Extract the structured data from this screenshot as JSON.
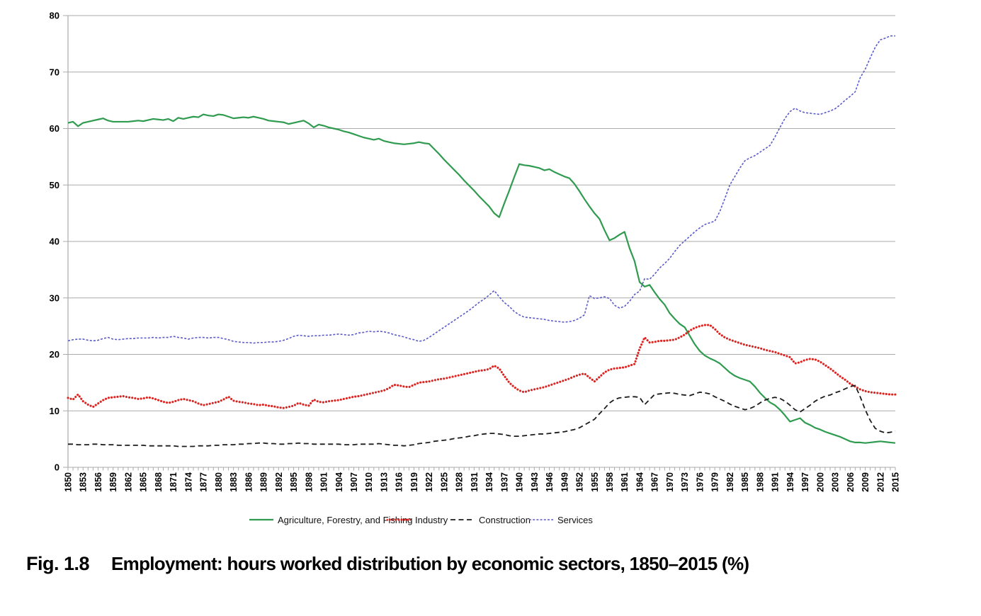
{
  "figure": {
    "fig_label": "Fig. 1.8",
    "caption": "Employment: hours worked distribution by economic sectors, 1850–2015 (%)"
  },
  "chart_data": {
    "type": "line",
    "title": "",
    "xlabel": "",
    "ylabel": "",
    "x_range": [
      1850,
      2015
    ],
    "x_step": 1,
    "ylim": [
      0,
      80
    ],
    "y_ticks": [
      0,
      10,
      20,
      30,
      40,
      50,
      60,
      70,
      80
    ],
    "grid": "horizontal",
    "legend_position": "bottom",
    "axis_color": "#ababab",
    "x_tick_labels": [
      "1850",
      "1853",
      "1856",
      "1859",
      "1862",
      "1865",
      "1868",
      "1871",
      "1874",
      "1877",
      "1880",
      "1883",
      "1886",
      "1889",
      "1892",
      "1895",
      "1898",
      "1901",
      "1904",
      "1907",
      "1910",
      "1913",
      "1916",
      "1919",
      "1922",
      "1925",
      "1928",
      "1931",
      "1934",
      "1937",
      "1940",
      "1943",
      "1946",
      "1949",
      "1952",
      "1955",
      "1958",
      "1961",
      "1964",
      "1967",
      "1970",
      "1973",
      "1976",
      "1979",
      "1982",
      "1985",
      "1988",
      "1991",
      "1994",
      "1997",
      "2000",
      "2003",
      "2006",
      "2009",
      "2012",
      "2015"
    ],
    "series": [
      {
        "name": "Agriculture, Forestry, and Fishing",
        "color": "#2f9b4f",
        "style": "solid",
        "values": [
          61.0,
          61.2,
          60.4,
          61.0,
          61.2,
          61.4,
          61.6,
          61.8,
          61.4,
          61.2,
          61.2,
          61.2,
          61.2,
          61.3,
          61.4,
          61.3,
          61.5,
          61.7,
          61.6,
          61.5,
          61.7,
          61.3,
          61.9,
          61.7,
          61.9,
          62.1,
          62.0,
          62.5,
          62.3,
          62.2,
          62.5,
          62.4,
          62.1,
          61.8,
          61.9,
          62.0,
          61.9,
          62.1,
          61.9,
          61.7,
          61.4,
          61.3,
          61.2,
          61.1,
          60.8,
          61.0,
          61.2,
          61.4,
          60.9,
          60.2,
          60.7,
          60.5,
          60.2,
          60.0,
          59.8,
          59.5,
          59.3,
          59.0,
          58.7,
          58.4,
          58.2,
          58.0,
          58.2,
          57.8,
          57.6,
          57.4,
          57.3,
          57.2,
          57.3,
          57.4,
          57.6,
          57.4,
          57.3,
          56.4,
          55.5,
          54.5,
          53.6,
          52.7,
          51.8,
          50.8,
          49.9,
          49.0,
          48.0,
          47.1,
          46.2,
          45.0,
          44.3,
          46.7,
          49.0,
          51.4,
          53.7,
          53.5,
          53.4,
          53.2,
          53.0,
          52.6,
          52.8,
          52.3,
          51.9,
          51.5,
          51.2,
          50.2,
          48.9,
          47.5,
          46.2,
          45.0,
          44.0,
          42.0,
          40.2,
          40.6,
          41.2,
          41.7,
          38.8,
          36.5,
          32.8,
          32.0,
          32.3,
          31.0,
          29.8,
          28.8,
          27.3,
          26.3,
          25.4,
          24.8,
          23.3,
          21.8,
          20.6,
          19.8,
          19.3,
          18.9,
          18.4,
          17.6,
          16.8,
          16.2,
          15.8,
          15.5,
          15.2,
          14.3,
          13.2,
          12.3,
          11.5,
          11.0,
          10.2,
          9.2,
          8.1,
          8.4,
          8.7,
          7.9,
          7.5,
          7.0,
          6.7,
          6.3,
          6.0,
          5.7,
          5.4,
          5.0,
          4.6,
          4.4,
          4.4,
          4.3,
          4.4,
          4.5,
          4.6,
          4.5,
          4.4,
          4.3
        ]
      },
      {
        "name": "Industry",
        "color": "#dd2421",
        "style": "dotted",
        "values": [
          12.3,
          12.0,
          12.9,
          11.7,
          11.1,
          10.7,
          11.3,
          11.9,
          12.3,
          12.4,
          12.5,
          12.6,
          12.4,
          12.3,
          12.1,
          12.2,
          12.4,
          12.2,
          11.9,
          11.6,
          11.4,
          11.6,
          11.9,
          12.1,
          11.9,
          11.7,
          11.3,
          11.0,
          11.2,
          11.4,
          11.6,
          12.0,
          12.5,
          11.8,
          11.6,
          11.5,
          11.3,
          11.2,
          11.0,
          11.1,
          10.9,
          10.8,
          10.6,
          10.5,
          10.7,
          10.9,
          11.4,
          11.1,
          10.9,
          12.0,
          11.6,
          11.5,
          11.7,
          11.8,
          11.9,
          12.1,
          12.3,
          12.5,
          12.6,
          12.8,
          13.0,
          13.2,
          13.4,
          13.6,
          14.0,
          14.6,
          14.5,
          14.3,
          14.2,
          14.6,
          15.0,
          15.1,
          15.2,
          15.4,
          15.6,
          15.7,
          15.9,
          16.1,
          16.3,
          16.5,
          16.7,
          16.9,
          17.1,
          17.2,
          17.4,
          18.0,
          17.5,
          16.2,
          15.0,
          14.2,
          13.6,
          13.3,
          13.6,
          13.8,
          14.0,
          14.2,
          14.5,
          14.8,
          15.1,
          15.4,
          15.7,
          16.1,
          16.4,
          16.6,
          15.9,
          15.2,
          16.0,
          16.8,
          17.3,
          17.5,
          17.6,
          17.7,
          18.0,
          18.3,
          21.0,
          23.0,
          22.1,
          22.2,
          22.4,
          22.4,
          22.5,
          22.6,
          23.0,
          23.5,
          24.2,
          24.7,
          25.0,
          25.2,
          25.2,
          24.5,
          23.6,
          23.0,
          22.6,
          22.3,
          22.0,
          21.7,
          21.5,
          21.3,
          21.1,
          20.8,
          20.6,
          20.4,
          20.1,
          19.8,
          19.5,
          18.4,
          18.6,
          19.0,
          19.2,
          19.1,
          18.7,
          18.1,
          17.5,
          16.8,
          16.1,
          15.5,
          14.8,
          14.3,
          13.8,
          13.5,
          13.3,
          13.2,
          13.1,
          13.0,
          12.9,
          12.9
        ]
      },
      {
        "name": "Construction",
        "color": "#1c1c1c",
        "style": "dashed",
        "values": [
          4.1,
          4.1,
          4.0,
          4.0,
          4.0,
          4.1,
          4.1,
          4.0,
          4.0,
          4.0,
          3.9,
          3.9,
          3.9,
          3.9,
          3.9,
          3.9,
          3.8,
          3.8,
          3.8,
          3.8,
          3.8,
          3.8,
          3.7,
          3.7,
          3.7,
          3.7,
          3.8,
          3.8,
          3.8,
          3.9,
          3.9,
          4.0,
          4.0,
          4.0,
          4.1,
          4.1,
          4.2,
          4.2,
          4.3,
          4.3,
          4.2,
          4.2,
          4.1,
          4.1,
          4.2,
          4.2,
          4.3,
          4.2,
          4.2,
          4.1,
          4.1,
          4.1,
          4.1,
          4.1,
          4.1,
          4.0,
          4.0,
          4.0,
          4.1,
          4.1,
          4.1,
          4.1,
          4.2,
          4.1,
          4.0,
          3.9,
          3.9,
          3.8,
          3.9,
          4.0,
          4.2,
          4.3,
          4.4,
          4.6,
          4.7,
          4.8,
          4.9,
          5.1,
          5.2,
          5.3,
          5.5,
          5.6,
          5.8,
          5.9,
          6.0,
          6.0,
          5.9,
          5.8,
          5.6,
          5.5,
          5.5,
          5.6,
          5.7,
          5.8,
          5.9,
          5.9,
          6.0,
          6.1,
          6.2,
          6.3,
          6.5,
          6.7,
          7.0,
          7.5,
          8.0,
          8.5,
          9.5,
          10.4,
          11.4,
          12.0,
          12.3,
          12.4,
          12.5,
          12.5,
          12.4,
          11.1,
          12.0,
          12.9,
          13.0,
          13.1,
          13.2,
          13.1,
          12.9,
          12.8,
          12.7,
          13.0,
          13.3,
          13.2,
          13.0,
          12.5,
          12.1,
          11.7,
          11.2,
          10.8,
          10.5,
          10.2,
          10.4,
          10.8,
          11.4,
          11.9,
          12.2,
          12.4,
          12.2,
          11.7,
          11.0,
          10.2,
          9.8,
          10.4,
          11.0,
          11.7,
          12.2,
          12.6,
          12.8,
          13.2,
          13.5,
          13.9,
          14.3,
          14.5,
          12.5,
          10.2,
          8.3,
          6.9,
          6.4,
          6.1,
          6.2,
          6.4
        ]
      },
      {
        "name": "Services",
        "color": "#5a5ac8",
        "style": "fine-dashed",
        "values": [
          22.4,
          22.6,
          22.7,
          22.7,
          22.5,
          22.4,
          22.5,
          22.8,
          23.0,
          22.7,
          22.6,
          22.7,
          22.8,
          22.8,
          22.9,
          22.9,
          22.9,
          23.0,
          22.9,
          23.0,
          23.0,
          23.2,
          23.0,
          22.9,
          22.7,
          22.9,
          23.0,
          23.0,
          22.9,
          23.0,
          23.0,
          22.8,
          22.6,
          22.3,
          22.2,
          22.1,
          22.1,
          22.0,
          22.1,
          22.1,
          22.2,
          22.2,
          22.3,
          22.5,
          22.8,
          23.2,
          23.4,
          23.3,
          23.2,
          23.3,
          23.3,
          23.4,
          23.4,
          23.5,
          23.6,
          23.5,
          23.4,
          23.5,
          23.8,
          23.9,
          24.1,
          24.0,
          24.1,
          24.0,
          23.8,
          23.5,
          23.3,
          23.1,
          22.8,
          22.6,
          22.3,
          22.5,
          23.0,
          23.6,
          24.2,
          24.8,
          25.4,
          26.0,
          26.6,
          27.2,
          27.8,
          28.5,
          29.2,
          29.8,
          30.5,
          31.3,
          30.2,
          29.2,
          28.5,
          27.6,
          27.0,
          26.6,
          26.5,
          26.4,
          26.3,
          26.2,
          26.0,
          25.9,
          25.8,
          25.7,
          25.8,
          26.0,
          26.4,
          27.0,
          30.4,
          29.9,
          30.0,
          30.2,
          29.9,
          28.7,
          28.2,
          28.5,
          29.4,
          30.6,
          31.2,
          33.4,
          33.3,
          34.2,
          35.3,
          36.1,
          37.0,
          38.2,
          39.3,
          40.1,
          40.9,
          41.7,
          42.4,
          43.0,
          43.3,
          43.6,
          45.3,
          47.6,
          50.0,
          51.5,
          53.0,
          54.3,
          54.8,
          55.2,
          55.8,
          56.4,
          57.0,
          58.5,
          60.2,
          61.8,
          63.0,
          63.6,
          63.1,
          62.8,
          62.7,
          62.6,
          62.5,
          62.8,
          63.1,
          63.5,
          64.2,
          65.0,
          65.7,
          66.5,
          69.0,
          70.5,
          72.5,
          74.4,
          75.7,
          76.0,
          76.4,
          76.4
        ]
      }
    ]
  }
}
